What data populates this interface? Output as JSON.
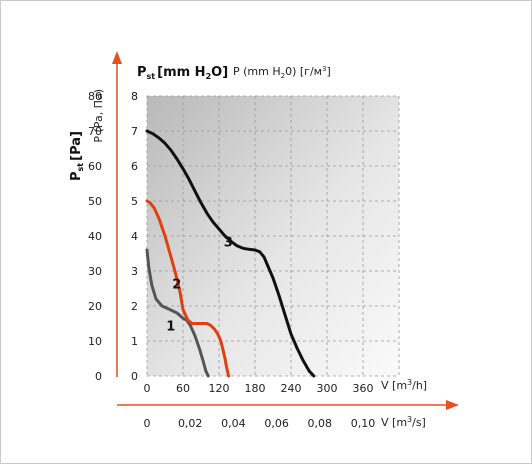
{
  "chart_data": {
    "type": "line",
    "y_left_label": "[Pa]",
    "y_left_sub": "st",
    "y_left_prefix": "P",
    "y_top_label_main": "[mm H",
    "y_top_label_sub": "2",
    "y_top_label_end": "O]",
    "y_top_label_prefix": "P",
    "y_top_label_prefix_sub": "st",
    "y_top_secondary": "P (mm H",
    "y_top_secondary_sub": "2",
    "y_top_secondary_end": "0) [г/м",
    "y_top_secondary_sup": "3",
    "y_top_secondary_close": "]",
    "y_axis_caption": "P (Pa, Па)",
    "x1_label": "V [m",
    "x1_label_sup": "3",
    "x1_label_end": "/h]",
    "x2_label": "V [m",
    "x2_label_sup": "3",
    "x2_label_end": "/s]",
    "pa_ticks": [
      "80",
      "70",
      "60",
      "50",
      "40",
      "30",
      "20",
      "10",
      "0"
    ],
    "mmh2o_ticks": [
      "8",
      "7",
      "6",
      "5",
      "4",
      "3",
      "2",
      "1",
      "0"
    ],
    "x1_ticks": [
      "0",
      "60",
      "120",
      "180",
      "240",
      "300",
      "360"
    ],
    "x2_ticks": [
      "0",
      "0,02",
      "0,04",
      "0,06",
      "0,08",
      "0,10"
    ],
    "x1_range": [
      0,
      420
    ],
    "y_range_mmh2o": [
      0,
      8
    ],
    "grid": "dashed",
    "series": [
      {
        "label": "1",
        "color": "#555555",
        "x": [
          0,
          3,
          8,
          15,
          25,
          38,
          50,
          60,
          66,
          72,
          80,
          88,
          94,
          98,
          102
        ],
        "y": [
          3.6,
          3.1,
          2.6,
          2.2,
          2.0,
          1.9,
          1.8,
          1.65,
          1.6,
          1.45,
          1.15,
          0.75,
          0.4,
          0.15,
          0.0
        ]
      },
      {
        "label": "2",
        "color": "#e04010",
        "x": [
          0,
          5,
          12,
          20,
          30,
          40,
          48,
          55,
          60,
          68,
          75,
          90,
          100,
          106,
          112,
          118,
          123,
          126,
          130,
          132,
          134,
          136
        ],
        "y": [
          5.0,
          4.95,
          4.8,
          4.5,
          4.0,
          3.4,
          2.9,
          2.4,
          1.9,
          1.6,
          1.5,
          1.5,
          1.5,
          1.45,
          1.35,
          1.2,
          1.0,
          0.8,
          0.5,
          0.3,
          0.15,
          0.0
        ]
      },
      {
        "label": "3",
        "color": "#111111",
        "x": [
          0,
          10,
          20,
          30,
          40,
          50,
          60,
          70,
          80,
          90,
          100,
          110,
          120,
          130,
          140,
          150,
          160,
          170,
          180,
          188,
          195,
          200,
          210,
          220,
          230,
          240,
          250,
          260,
          270,
          278
        ],
        "y": [
          7.0,
          6.92,
          6.8,
          6.65,
          6.45,
          6.2,
          5.92,
          5.62,
          5.28,
          4.95,
          4.65,
          4.4,
          4.2,
          4.0,
          3.85,
          3.72,
          3.65,
          3.62,
          3.6,
          3.55,
          3.4,
          3.2,
          2.8,
          2.3,
          1.75,
          1.2,
          0.8,
          0.45,
          0.15,
          0.0
        ]
      }
    ]
  }
}
